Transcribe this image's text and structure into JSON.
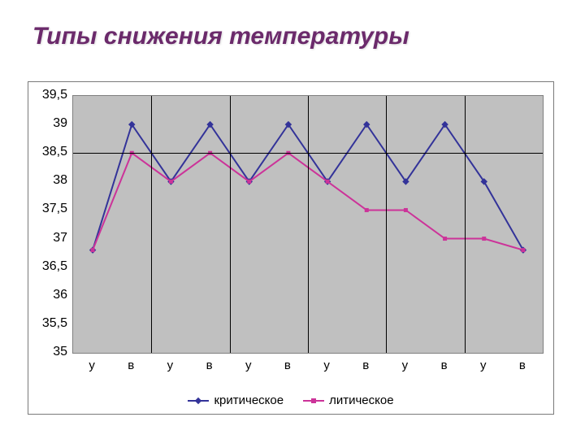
{
  "title": "Типы снижения температуры",
  "chart": {
    "type": "line",
    "background_color": "#ffffff",
    "plot_background": "#c0c0c0",
    "grid_color": "#000000",
    "categories": [
      "у",
      "в",
      "у",
      "в",
      "у",
      "в",
      "у",
      "в",
      "у",
      "в",
      "у",
      "в"
    ],
    "ylim": [
      35,
      39.5
    ],
    "ytick_step": 0.5,
    "yticks": [
      "35",
      "35,5",
      "36",
      "36,5",
      "37",
      "37,5",
      "38",
      "38,5",
      "39",
      "39,5"
    ],
    "vgrid_every": 2,
    "hgrid_at": [
      38.5
    ],
    "tick_fontsize": 16,
    "series": [
      {
        "name": "критическое",
        "color": "#333399",
        "marker": "diamond",
        "marker_size": 6,
        "line_width": 2,
        "values": [
          36.8,
          39.0,
          38.0,
          39.0,
          38.0,
          39.0,
          38.0,
          39.0,
          38.0,
          39.0,
          38.0,
          36.8
        ]
      },
      {
        "name": "литическое",
        "color": "#cc3399",
        "marker": "square",
        "marker_size": 5,
        "line_width": 2,
        "values": [
          36.8,
          38.5,
          38.0,
          38.5,
          38.0,
          38.5,
          38.0,
          37.5,
          37.5,
          37.0,
          37.0,
          36.8
        ]
      }
    ],
    "legend_fontsize": 15
  }
}
